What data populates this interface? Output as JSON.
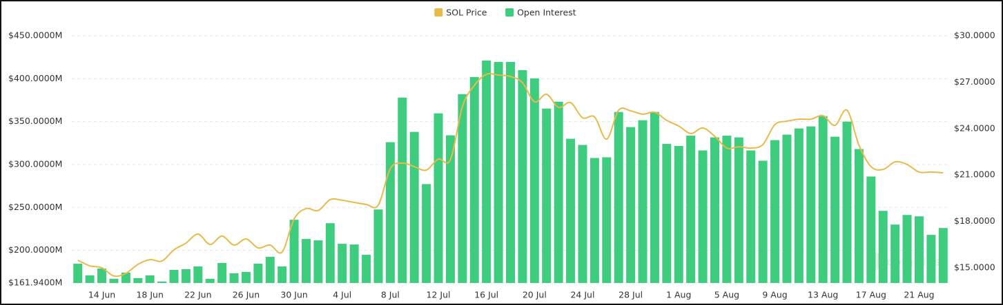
{
  "chart_data": {
    "type": "bar",
    "categories": [
      null,
      null,
      "14 Jun",
      null,
      null,
      null,
      "18 Jun",
      null,
      null,
      null,
      "22 Jun",
      null,
      null,
      null,
      "26 Jun",
      null,
      null,
      null,
      "30 Jun",
      null,
      null,
      null,
      "4 Jul",
      null,
      null,
      null,
      "8 Jul",
      null,
      null,
      null,
      "12 Jul",
      null,
      null,
      null,
      "16 Jul",
      null,
      null,
      null,
      "20 Jul",
      null,
      null,
      null,
      "24 Jul",
      null,
      null,
      null,
      "28 Jul",
      null,
      null,
      null,
      "1 Aug",
      null,
      null,
      null,
      "5 Aug",
      null,
      null,
      null,
      "9 Aug",
      null,
      null,
      null,
      "13 Aug",
      null,
      null,
      null,
      "17 Aug",
      null,
      null,
      null,
      "21 Aug",
      null,
      null
    ],
    "series": [
      {
        "name": "SOL Price",
        "type": "line",
        "axis": "y2",
        "color": "#e9b949",
        "values": [
          15.49,
          15.13,
          15.0,
          14.47,
          14.64,
          15.22,
          15.53,
          15.44,
          16.16,
          16.6,
          17.18,
          16.51,
          17.05,
          16.47,
          16.87,
          16.29,
          16.47,
          16.02,
          18.16,
          18.83,
          18.7,
          19.41,
          19.37,
          19.23,
          19.1,
          19.05,
          21.41,
          21.77,
          21.54,
          21.32,
          22.03,
          21.99,
          25.42,
          26.8,
          27.51,
          27.46,
          27.37,
          26.97,
          25.73,
          26.22,
          25.37,
          25.68,
          24.7,
          24.75,
          23.32,
          25.19,
          25.15,
          24.93,
          25.06,
          24.53,
          24.17,
          23.68,
          24.04,
          23.5,
          22.74,
          22.83,
          22.74,
          22.97,
          24.26,
          24.48,
          24.61,
          24.61,
          24.84,
          24.21,
          25.19,
          22.92,
          21.54,
          21.36,
          21.85,
          21.68,
          21.19,
          21.19,
          21.14
        ]
      },
      {
        "name": "Open Interest",
        "color": "#3ecd7e",
        "values": [
          184.4,
          170.8,
          178.8,
          166.8,
          174,
          167.6,
          170.8,
          163.6,
          177.2,
          178,
          181.2,
          166.8,
          185.2,
          173.2,
          174.8,
          184.4,
          192.4,
          181.2,
          235.6,
          213.2,
          211.6,
          231.6,
          207.6,
          206.8,
          194.8,
          247.6,
          326,
          378,
          338,
          277.2,
          359.6,
          334,
          382,
          402,
          421.2,
          419.6,
          419.6,
          410,
          400.4,
          365.2,
          373.2,
          330,
          322.8,
          307.6,
          308.4,
          361.2,
          343.6,
          351.6,
          361.2,
          324,
          321.6,
          333.6,
          316.4,
          331.6,
          333.6,
          331.6,
          316.4,
          304.4,
          328.4,
          334.8,
          342,
          344.4,
          356.4,
          332.4,
          350,
          318,
          286,
          246,
          230,
          241.2,
          239.6,
          218,
          226
        ]
      }
    ],
    "ylim": [
      161.94,
      450
    ],
    "yticks": [
      {
        "value": 161.94,
        "label": "$161.9400M"
      },
      {
        "value": 200,
        "label": "$200.0000M"
      },
      {
        "value": 250,
        "label": "$250.0000M"
      },
      {
        "value": 300,
        "label": "$300.0000M"
      },
      {
        "value": 350,
        "label": "$350.0000M"
      },
      {
        "value": 400,
        "label": "$400.0000M"
      },
      {
        "value": 450,
        "label": "$450.0000M"
      }
    ],
    "y2lim": [
      14.02,
      30
    ],
    "y2ticks": [
      {
        "value": 15,
        "label": "$15.0000"
      },
      {
        "value": 18,
        "label": "$18.0000"
      },
      {
        "value": 21,
        "label": "$21.0000"
      },
      {
        "value": 24,
        "label": "$24.0000"
      },
      {
        "value": 27,
        "label": "$27.0000"
      },
      {
        "value": 30,
        "label": "$30.0000"
      }
    ],
    "grid": true,
    "legend": "top",
    "watermark": "coinglass"
  }
}
